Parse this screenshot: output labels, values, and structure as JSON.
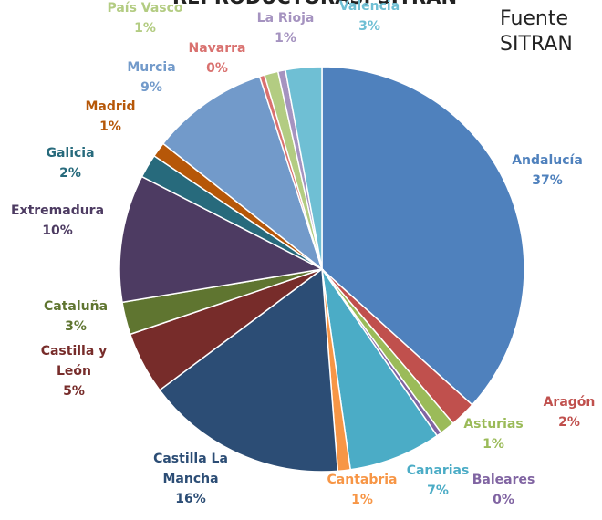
{
  "chart_data": {
    "type": "pie",
    "title": "REPRODUCTORAS, SITRAN",
    "annotations": [
      "Fuente",
      "SITRAN"
    ],
    "categories": [
      "Andalucía",
      "Aragón",
      "Asturias",
      "Baleares",
      "Canarias",
      "Cantabria",
      "Castilla La Mancha",
      "Castilla y León",
      "Cataluña",
      "Extremadura",
      "Galicia",
      "Madrid",
      "Murcia",
      "Navarra",
      "País Vasco",
      "La Rioja",
      "Valencia"
    ],
    "values": [
      36.8,
      2.1,
      1.2,
      0.4,
      7.4,
      1.0,
      16.1,
      5.0,
      2.6,
      10.2,
      1.9,
      1.2,
      9.4,
      0.4,
      1.1,
      0.6,
      2.9
    ],
    "value_labels": [
      "37%",
      "2%",
      "1%",
      "0%",
      "7%",
      "1%",
      "16%",
      "5%",
      "3%",
      "10%",
      "2%",
      "1%",
      "9%",
      "0%",
      "1%",
      "1%",
      "3%"
    ],
    "colors": [
      "#4f81bd",
      "#c0504d",
      "#9bbb59",
      "#8064a2",
      "#4bacc6",
      "#f79646",
      "#2c4d75",
      "#772c2a",
      "#5f7530",
      "#4d3b62",
      "#276a7c",
      "#b65708",
      "#729aca",
      "#d9716f",
      "#b3cc82",
      "#a593c0",
      "#6fbfd4"
    ]
  }
}
